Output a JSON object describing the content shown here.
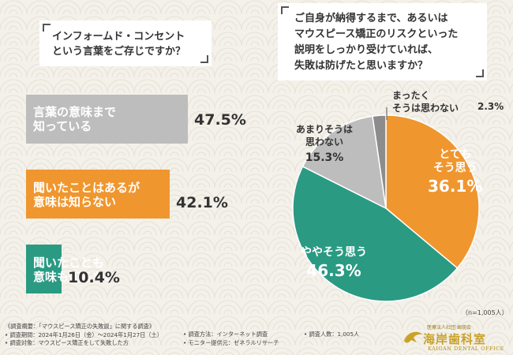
{
  "left_question": {
    "line1": "インフォームド・コンセント",
    "line2": "という言葉をご存じですか？"
  },
  "right_question": {
    "line1": "ご自身が納得するまで、あるいは",
    "line2": "マウスピース矯正のリスクといった",
    "line3": "説明をしっかり受けていれば、",
    "line4": "失敗は防げたと思いますか？"
  },
  "chart_data": [
    {
      "type": "bar",
      "orientation": "horizontal",
      "title": "インフォームド・コンセントという言葉をご存じですか？",
      "categories": [
        "言葉の意味まで知っている",
        "聞いたことはあるが意味は知らない",
        "聞いたことも意味も知らない"
      ],
      "values": [
        47.5,
        42.1,
        10.4
      ],
      "colors": [
        "#bdbdbd",
        "#f0962e",
        "#2a9a83"
      ],
      "labels": [
        {
          "line1": "言葉の意味まで",
          "line2": "知っている",
          "pct": "47.5%"
        },
        {
          "line1": "聞いたことはあるが",
          "line2": "意味は知らない",
          "pct": "42.1%"
        },
        {
          "line1": "聞いたことも",
          "line2": "意味も知らない",
          "pct": "10.4%"
        }
      ]
    },
    {
      "type": "pie",
      "title": "ご自身が納得するまで、あるいはマウスピース矯正のリスクといった説明をしっかり受けていれば、失敗は防げたと思いますか？",
      "categories": [
        "とてもそう思う",
        "ややそう思う",
        "あまりそうは思わない",
        "まったくそうは思わない"
      ],
      "values": [
        36.1,
        46.3,
        15.3,
        2.3
      ],
      "colors": [
        "#f0962e",
        "#2a9a83",
        "#bdbdbd",
        "#8c8c8c"
      ],
      "labels": [
        {
          "line1": "とても",
          "line2": "そう思う",
          "pct": "36.1%"
        },
        {
          "line1": "ややそう思う",
          "line2": "",
          "pct": "46.3%"
        },
        {
          "line1": "あまりそうは",
          "line2": "思わない",
          "pct": "15.3%"
        },
        {
          "line1": "まったく",
          "line2": "そうは思わない",
          "pct": "2.3%"
        }
      ],
      "n_note": "（n=1,005人）"
    }
  ],
  "footer": {
    "col1": [
      "《調査概要：「マウスピース矯正の失敗談」に関する調査》",
      "• 調査期間：2024年1月26日（金）〜2024年1月27日（土）",
      "• 調査対象：マウスピース矯正をして失敗した方"
    ],
    "col2": [
      "• 調査方法：インターネット調査",
      "• モニター提供元：ゼネラルリサーチ"
    ],
    "col3": [
      "• 調査人数：1,005人"
    ]
  },
  "logo": {
    "small": "医療法人社団 歯朋会",
    "main": "海岸歯科室",
    "sub": "KAIGAN DENTAL OFFICE"
  },
  "colors": {
    "background": "#f4f1ea",
    "orange": "#f0962e",
    "green": "#2a9a83",
    "gray": "#bdbdbd",
    "dark_gray": "#8c8c8c",
    "gold": "#c9a227"
  }
}
